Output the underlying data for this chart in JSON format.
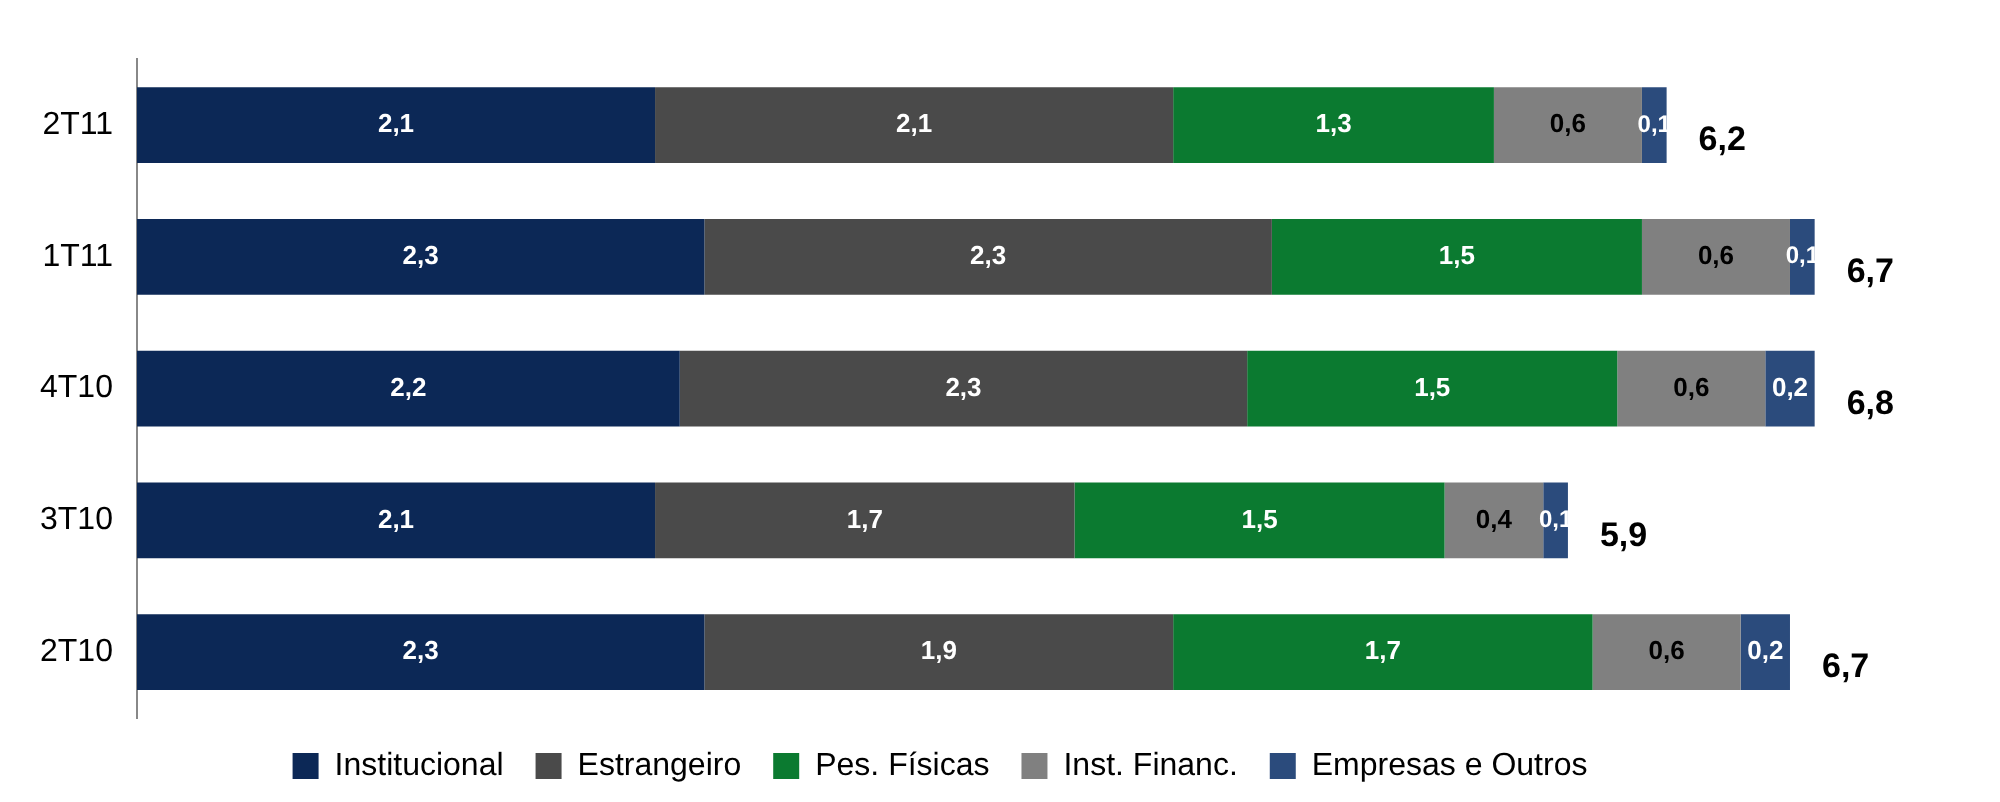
{
  "chart_data": {
    "type": "bar",
    "orientation": "horizontal",
    "stacked": true,
    "legend": "bottom",
    "grid": false,
    "tick_labels": "y",
    "categories": [
      "2T11",
      "1T11",
      "4T10",
      "3T10",
      "2T10"
    ],
    "series": [
      {
        "name": "Institucional",
        "color": "#0c2856",
        "values": [
          2.1,
          2.3,
          2.2,
          2.1,
          2.3
        ],
        "value_labels": [
          "2,1",
          "2,3",
          "2,2",
          "2,1",
          "2,3"
        ]
      },
      {
        "name": "Estrangeiro",
        "color": "#4a4a4a",
        "values": [
          2.1,
          2.3,
          2.3,
          1.7,
          1.9
        ],
        "value_labels": [
          "2,1",
          "2,3",
          "2,3",
          "1,7",
          "1,9"
        ]
      },
      {
        "name": "Pes. Físicas",
        "color": "#0b7a30",
        "values": [
          1.3,
          1.5,
          1.5,
          1.5,
          1.7
        ],
        "value_labels": [
          "1,3",
          "1,5",
          "1,5",
          "1,5",
          "1,7"
        ]
      },
      {
        "name": "Inst. Financ.",
        "color": "#808080",
        "values": [
          0.6,
          0.6,
          0.6,
          0.4,
          0.6
        ],
        "value_labels": [
          "0,6",
          "0,6",
          "0,6",
          "0,4",
          "0,6"
        ]
      },
      {
        "name": "Empresas e Outros",
        "color": "#2b4b7c",
        "values": [
          0.1,
          0.1,
          0.2,
          0.1,
          0.2
        ],
        "value_labels": [
          "0,1",
          "0,1",
          "0,2",
          "0,1",
          "0,2"
        ]
      }
    ],
    "totals": [
      "6,2",
      "6,7",
      "6,8",
      "5,9",
      "6,7"
    ]
  }
}
